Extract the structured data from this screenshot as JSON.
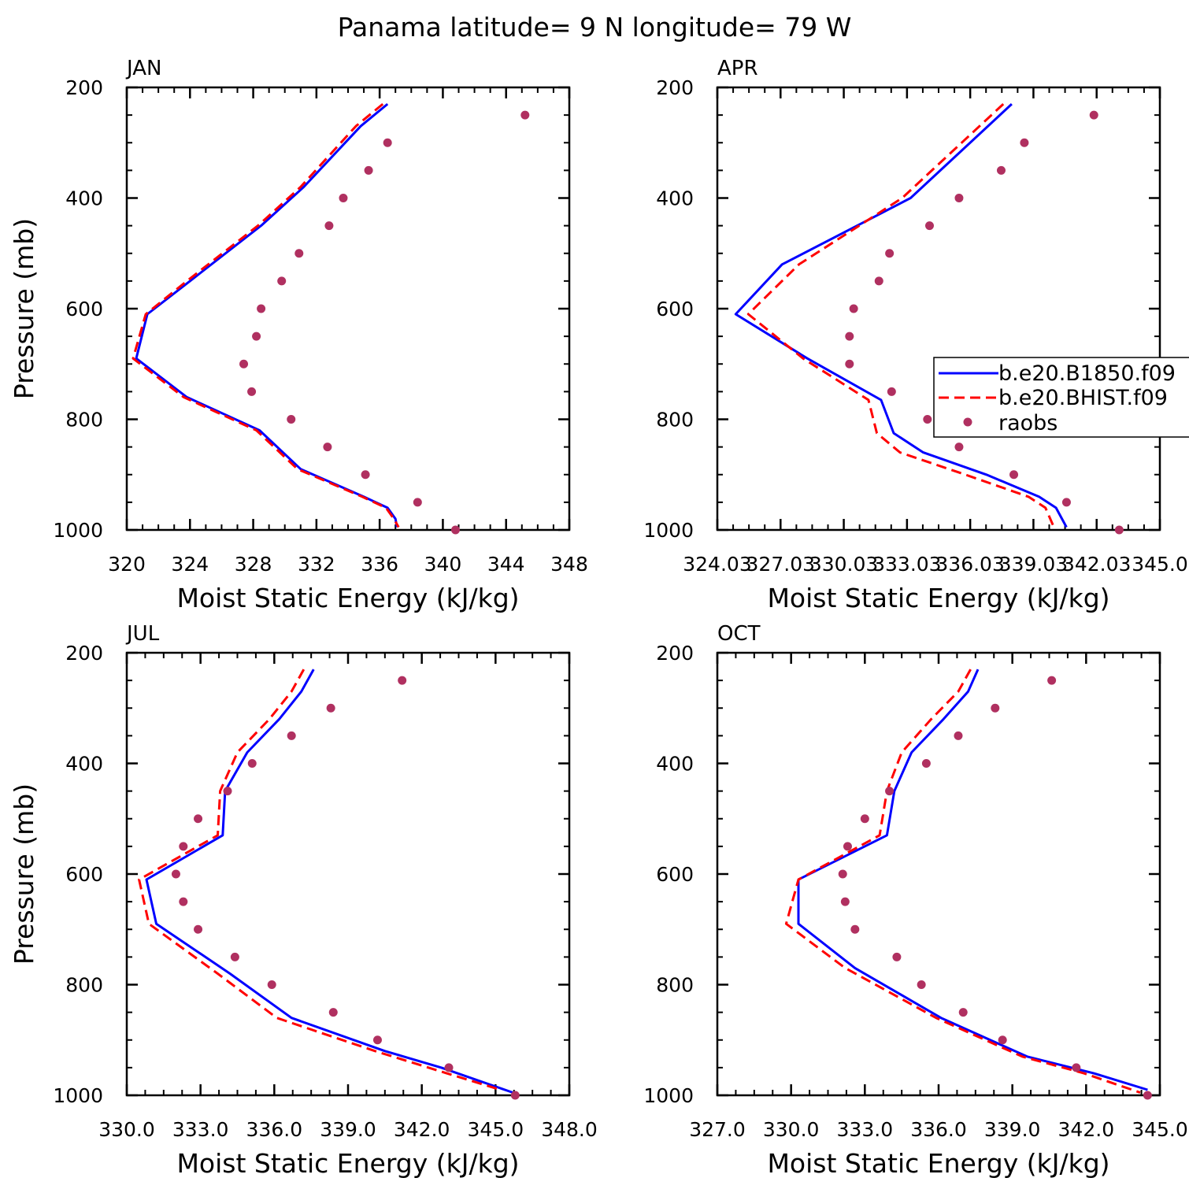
{
  "title": "Panama  latitude= 9 N longitude= 79 W",
  "legend": {
    "entries": [
      {
        "label": "b.e20.B1850.f09",
        "style": "solid",
        "color": "#0000ff"
      },
      {
        "label": "b.e20.BHIST.f09",
        "style": "dashed",
        "color": "#ff0000"
      },
      {
        "label": "raobs",
        "style": "marker",
        "color": "#b03060"
      }
    ]
  },
  "colors": {
    "model1": "#0000ff",
    "model2": "#ff0000",
    "obs": "#b03060"
  },
  "chart_data": [
    {
      "type": "line",
      "panel": "JAN",
      "xlabel": "Moist Static Energy (kJ/kg)",
      "ylabel": "Pressure (mb)",
      "xlim": [
        320,
        348
      ],
      "ylim": [
        1000,
        200
      ],
      "xticks": [
        320,
        324,
        328,
        332,
        336,
        340,
        344,
        348
      ],
      "xtick_labels": [
        "320",
        "324",
        "328",
        "332",
        "336",
        "340",
        "344",
        "348"
      ],
      "yticks": [
        200,
        400,
        600,
        800,
        1000
      ],
      "ytick_labels": [
        "200",
        "400",
        "600",
        "800",
        "1000"
      ],
      "show_ylabel": true,
      "series": [
        {
          "name": "b.e20.B1850.f09",
          "pressure": [
            230,
            270,
            380,
            450,
            550,
            610,
            690,
            760,
            820,
            890,
            940,
            960,
            980,
            995
          ],
          "values": [
            336.5,
            334.8,
            331.2,
            328.5,
            324.0,
            321.3,
            320.6,
            323.8,
            328.4,
            331.0,
            335.0,
            336.5,
            337.0,
            337.1
          ]
        },
        {
          "name": "b.e20.BHIST.f09",
          "pressure": [
            230,
            270,
            380,
            450,
            550,
            610,
            690,
            760,
            820,
            890,
            940,
            960,
            980,
            995
          ],
          "values": [
            336.2,
            334.5,
            331.0,
            328.3,
            323.8,
            321.2,
            320.4,
            323.6,
            328.2,
            330.8,
            334.9,
            336.4,
            336.9,
            337.2
          ]
        },
        {
          "name": "raobs",
          "pressure": [
            250,
            300,
            350,
            400,
            450,
            500,
            550,
            600,
            650,
            700,
            750,
            800,
            850,
            900,
            950,
            1000
          ],
          "values": [
            345.2,
            336.5,
            335.3,
            333.7,
            332.8,
            330.9,
            329.8,
            328.5,
            328.2,
            327.4,
            327.9,
            330.4,
            332.7,
            335.1,
            338.4,
            340.8
          ]
        }
      ]
    },
    {
      "type": "line",
      "panel": "APR",
      "xlabel": "Moist Static Energy (kJ/kg)",
      "ylabel": "Pressure (mb)",
      "xlim": [
        324.03,
        345.03
      ],
      "ylim": [
        1000,
        200
      ],
      "xticks": [
        324.03,
        327.03,
        330.03,
        333.03,
        336.03,
        339.03,
        342.03,
        345.03
      ],
      "xtick_labels": [
        "324.03",
        "327.03",
        "330.03",
        "333.03",
        "336.03",
        "339.03",
        "342.03",
        "345.0"
      ],
      "yticks": [
        200,
        400,
        600,
        800,
        1000
      ],
      "ytick_labels": [
        "200",
        "400",
        "600",
        "800",
        "1000"
      ],
      "show_ylabel": false,
      "series": [
        {
          "name": "b.e20.B1850.f09",
          "pressure": [
            230,
            400,
            520,
            610,
            690,
            765,
            825,
            860,
            900,
            940,
            960,
            995
          ],
          "values": [
            338.0,
            333.2,
            327.1,
            324.9,
            328.3,
            331.8,
            332.4,
            333.8,
            336.8,
            339.3,
            340.1,
            340.6
          ]
        },
        {
          "name": "b.e20.BHIST.f09",
          "pressure": [
            230,
            400,
            520,
            610,
            690,
            765,
            825,
            860,
            900,
            940,
            960,
            995
          ],
          "values": [
            337.6,
            332.8,
            327.9,
            325.5,
            328.1,
            331.2,
            331.6,
            332.7,
            335.8,
            338.8,
            339.6,
            340.0
          ]
        },
        {
          "name": "raobs",
          "pressure": [
            250,
            300,
            350,
            400,
            450,
            500,
            550,
            600,
            650,
            700,
            750,
            800,
            850,
            900,
            950,
            1000
          ],
          "values": [
            341.9,
            338.6,
            337.5,
            335.5,
            334.1,
            332.2,
            331.7,
            330.5,
            330.3,
            330.3,
            332.3,
            334.0,
            335.5,
            338.1,
            340.6,
            343.1
          ]
        }
      ]
    },
    {
      "type": "line",
      "panel": "JUL",
      "xlabel": "Moist Static Energy (kJ/kg)",
      "ylabel": "Pressure (mb)",
      "xlim": [
        330.0,
        348.0
      ],
      "ylim": [
        1000,
        200
      ],
      "xticks": [
        330,
        333,
        336,
        339,
        342,
        345,
        348
      ],
      "xtick_labels": [
        "330.0",
        "333.0",
        "336.0",
        "339.0",
        "342.0",
        "345.0",
        "348.0"
      ],
      "yticks": [
        200,
        400,
        600,
        800,
        1000
      ],
      "ytick_labels": [
        "200",
        "400",
        "600",
        "800",
        "1000"
      ],
      "show_ylabel": true,
      "series": [
        {
          "name": "b.e20.B1850.f09",
          "pressure": [
            230,
            270,
            320,
            380,
            450,
            530,
            610,
            690,
            780,
            860,
            920,
            950,
            995
          ],
          "values": [
            337.6,
            337.1,
            336.2,
            334.9,
            334.0,
            333.9,
            330.8,
            331.2,
            334.2,
            336.7,
            340.5,
            342.8,
            345.7
          ]
        },
        {
          "name": "b.e20.BHIST.f09",
          "pressure": [
            230,
            270,
            320,
            380,
            450,
            530,
            610,
            690,
            780,
            860,
            920,
            960,
            990
          ],
          "values": [
            337.2,
            336.7,
            335.8,
            334.5,
            333.8,
            333.7,
            330.5,
            330.9,
            333.7,
            336.1,
            340.1,
            343.0,
            345.2
          ]
        },
        {
          "name": "raobs",
          "pressure": [
            250,
            300,
            350,
            400,
            450,
            500,
            550,
            600,
            650,
            700,
            750,
            800,
            850,
            900,
            950,
            1000
          ],
          "values": [
            341.2,
            338.3,
            336.7,
            335.1,
            334.1,
            332.9,
            332.3,
            332.0,
            332.3,
            332.9,
            334.4,
            335.9,
            338.4,
            340.2,
            343.1,
            345.8
          ]
        }
      ]
    },
    {
      "type": "line",
      "panel": "OCT",
      "xlabel": "Moist Static Energy (kJ/kg)",
      "ylabel": "Pressure (mb)",
      "xlim": [
        327.0,
        345.0
      ],
      "ylim": [
        1000,
        200
      ],
      "xticks": [
        327,
        330,
        333,
        336,
        339,
        342,
        345
      ],
      "xtick_labels": [
        "327.0",
        "330.0",
        "333.0",
        "336.0",
        "339.0",
        "342.0",
        "345.0"
      ],
      "yticks": [
        200,
        400,
        600,
        800,
        1000
      ],
      "ytick_labels": [
        "200",
        "400",
        "600",
        "800",
        "1000"
      ],
      "show_ylabel": false,
      "series": [
        {
          "name": "b.e20.B1850.f09",
          "pressure": [
            230,
            270,
            320,
            380,
            450,
            530,
            610,
            690,
            770,
            860,
            930,
            960,
            990
          ],
          "values": [
            337.6,
            337.2,
            336.2,
            334.9,
            334.2,
            333.9,
            330.3,
            330.3,
            332.6,
            336.1,
            339.6,
            342.3,
            344.5
          ]
        },
        {
          "name": "b.e20.BHIST.f09",
          "pressure": [
            230,
            270,
            320,
            380,
            450,
            530,
            610,
            690,
            770,
            860,
            930,
            960,
            995
          ],
          "values": [
            337.3,
            336.8,
            335.7,
            334.5,
            333.9,
            333.6,
            330.3,
            329.8,
            332.2,
            335.9,
            339.4,
            341.9,
            344.2
          ]
        },
        {
          "name": "raobs",
          "pressure": [
            250,
            300,
            350,
            400,
            450,
            500,
            550,
            600,
            650,
            700,
            750,
            800,
            850,
            900,
            950,
            1000
          ],
          "values": [
            340.6,
            338.3,
            336.8,
            335.5,
            334.0,
            333.0,
            332.3,
            332.1,
            332.2,
            332.6,
            334.3,
            335.3,
            337.0,
            338.6,
            341.6,
            344.5
          ]
        }
      ]
    }
  ]
}
